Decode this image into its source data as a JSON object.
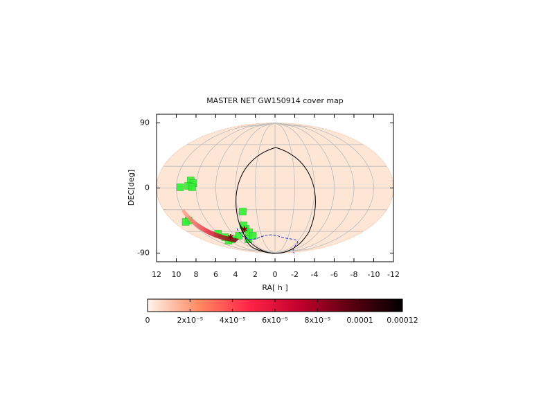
{
  "chart_data": {
    "type": "skymap",
    "title": "MASTER NET GW150914 cover map",
    "xlabel": "RA[ h ]",
    "ylabel": "DEC[deg]",
    "xlim": [
      12,
      -12
    ],
    "ylim": [
      -102,
      102
    ],
    "xticks": [
      12,
      10,
      8,
      6,
      4,
      2,
      0,
      -2,
      -4,
      -6,
      -8,
      -10,
      -12
    ],
    "yticks": [
      90,
      0,
      -90
    ],
    "grid": true,
    "series": [
      {
        "color": "#33ee33",
        "x": [
          8.6,
          8.3,
          8.8,
          9.6,
          8.4,
          3.5,
          10.1,
          10.6,
          8.1,
          7.7,
          7.1,
          5.4,
          3.8,
          3.6,
          3.9,
          8.0,
          4.4,
          3.3
        ],
        "y": [
          10.5,
          6.7,
          2.9,
          1,
          1,
          -32.6,
          -45,
          -46.9,
          -63.2,
          -68,
          -70.9,
          -66.1,
          -56.5,
          -61.3,
          -51.7,
          -72.8,
          -70.9,
          -66.1
        ]
      }
    ],
    "colorbar": {
      "clim": [
        0,
        0.00012
      ],
      "colors": [
        "#fff4ec",
        "#ff8a62",
        "#ff2448",
        "#c0002c",
        "#5a0010",
        "#000000"
      ],
      "ticks": [
        0,
        {
          "value": 2e-05,
          "label": "2x10⁻⁵"
        },
        {
          "value": 4e-05,
          "label": "4x10⁻⁵"
        },
        {
          "value": 6e-05,
          "label": "6x10⁻⁵"
        },
        {
          "value": 8e-05,
          "label": "8x10⁻⁵"
        },
        0.0001,
        0.00012
      ]
    }
  }
}
